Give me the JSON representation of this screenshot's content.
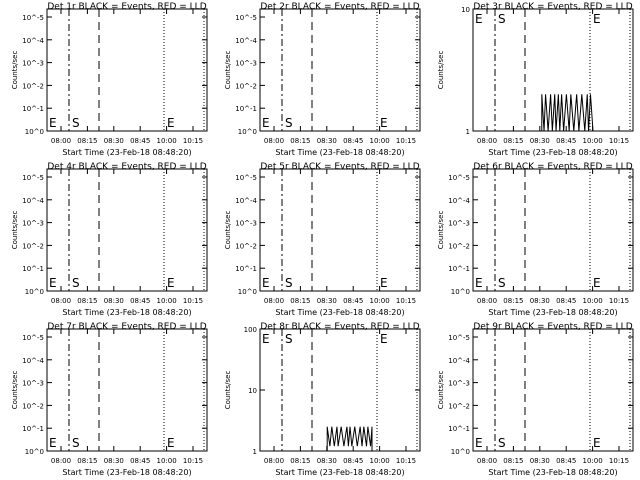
{
  "chart_data": [
    {
      "title": "Det 1r BLACK = Events, RED = LLD",
      "type": "line",
      "ylabel": "Counts/sec",
      "xlabel": "Start Time (23-Feb-18 08:48:20)",
      "x_ticks": [
        "08:00",
        "08:15",
        "08:30",
        "08:45",
        "10:00",
        "10:15"
      ],
      "y_ticks": [
        "10^0",
        "10^-1",
        "10^-2",
        "10^-3",
        "10^-4",
        "10^-5"
      ],
      "ylim": [
        1,
        1e-05
      ],
      "markers": [
        "E",
        "S",
        "E"
      ],
      "series": []
    },
    {
      "title": "Det 2r BLACK = Events, RED = LLD",
      "type": "line",
      "ylabel": "Counts/sec",
      "xlabel": "Start Time (23-Feb-18 08:48:20)",
      "x_ticks": [
        "08:00",
        "08:15",
        "08:30",
        "08:45",
        "10:00",
        "10:15"
      ],
      "y_ticks": [
        "10^0",
        "10^-1",
        "10^-2",
        "10^-3",
        "10^-4",
        "10^-5"
      ],
      "ylim": [
        1,
        1e-05
      ],
      "markers": [
        "E",
        "S",
        "E"
      ],
      "series": []
    },
    {
      "title": "Det 3r BLACK = Events, RED = LLD",
      "type": "line",
      "ylabel": "Counts/sec",
      "xlabel": "Start Time (23-Feb-18 08:48:20)",
      "x_ticks": [
        "08:00",
        "08:15",
        "08:30",
        "08:45",
        "10:00",
        "10:15"
      ],
      "y_ticks": [
        "1",
        "10"
      ],
      "ylim": [
        1,
        10
      ],
      "markers": [
        "E",
        "S",
        "E"
      ],
      "series": [
        {
          "type": "spiky",
          "start_frac": 0.43,
          "end_frac": 0.75,
          "level": 2,
          "base": 1
        }
      ]
    },
    {
      "title": "Det 4r BLACK = Events, RED = LLD",
      "type": "line",
      "ylabel": "Counts/sec",
      "xlabel": "Start Time (23-Feb-18 08:48:20)",
      "x_ticks": [
        "08:00",
        "08:15",
        "08:30",
        "08:45",
        "10:00",
        "10:15"
      ],
      "y_ticks": [
        "10^0",
        "10^-1",
        "10^-2",
        "10^-3",
        "10^-4",
        "10^-5"
      ],
      "ylim": [
        1,
        1e-05
      ],
      "markers": [
        "E",
        "S",
        "E"
      ],
      "series": []
    },
    {
      "title": "Det 5r BLACK = Events, RED = LLD",
      "type": "line",
      "ylabel": "Counts/sec",
      "xlabel": "Start Time (23-Feb-18 08:48:20)",
      "x_ticks": [
        "08:00",
        "08:15",
        "08:30",
        "08:45",
        "10:00",
        "10:15"
      ],
      "y_ticks": [
        "10^0",
        "10^-1",
        "10^-2",
        "10^-3",
        "10^-4",
        "10^-5"
      ],
      "ylim": [
        1,
        1e-05
      ],
      "markers": [
        "E",
        "S",
        "E"
      ],
      "series": []
    },
    {
      "title": "Det 6r BLACK = Events, RED = LLD",
      "type": "line",
      "ylabel": "Counts/sec",
      "xlabel": "Start Time (23-Feb-18 08:48:20)",
      "x_ticks": [
        "08:00",
        "08:15",
        "08:30",
        "08:45",
        "10:00",
        "10:15"
      ],
      "y_ticks": [
        "10^0",
        "10^-1",
        "10^-2",
        "10^-3",
        "10^-4",
        "10^-5"
      ],
      "ylim": [
        1,
        1e-05
      ],
      "markers": [
        "E",
        "S",
        "E"
      ],
      "series": []
    },
    {
      "title": "Det 7r BLACK = Events, RED = LLD",
      "type": "line",
      "ylabel": "Counts/sec",
      "xlabel": "Start Time (23-Feb-18 08:48:20)",
      "x_ticks": [
        "08:00",
        "08:15",
        "08:30",
        "08:45",
        "10:00",
        "10:15"
      ],
      "y_ticks": [
        "10^0",
        "10^-1",
        "10^-2",
        "10^-3",
        "10^-4",
        "10^-5"
      ],
      "ylim": [
        1,
        1e-05
      ],
      "markers": [
        "E",
        "S",
        "E"
      ],
      "series": []
    },
    {
      "title": "Det 8r BLACK = Events, RED = LLD",
      "type": "line",
      "ylabel": "Counts/sec",
      "xlabel": "Start Time (23-Feb-18 08:48:20)",
      "x_ticks": [
        "08:00",
        "08:15",
        "08:30",
        "08:45",
        "10:00",
        "10:15"
      ],
      "y_ticks": [
        "1",
        "10",
        "100"
      ],
      "ylim": [
        1,
        100
      ],
      "markers": [
        "E",
        "S",
        "E"
      ],
      "series": [
        {
          "type": "spiky",
          "start_frac": 0.42,
          "end_frac": 0.7,
          "level": 2.5,
          "base": 1.2
        }
      ]
    },
    {
      "title": "Det 9r BLACK = Events, RED = LLD",
      "type": "line",
      "ylabel": "Counts/sec",
      "xlabel": "Start Time (23-Feb-18 08:48:20)",
      "x_ticks": [
        "08:00",
        "08:15",
        "08:30",
        "08:45",
        "10:00",
        "10:15"
      ],
      "y_ticks": [
        "10^0",
        "10^-1",
        "10^-2",
        "10^-3",
        "10^-4",
        "10^-5"
      ],
      "ylim": [
        1,
        1e-05
      ],
      "markers": [
        "E",
        "S",
        "E"
      ],
      "series": []
    }
  ]
}
